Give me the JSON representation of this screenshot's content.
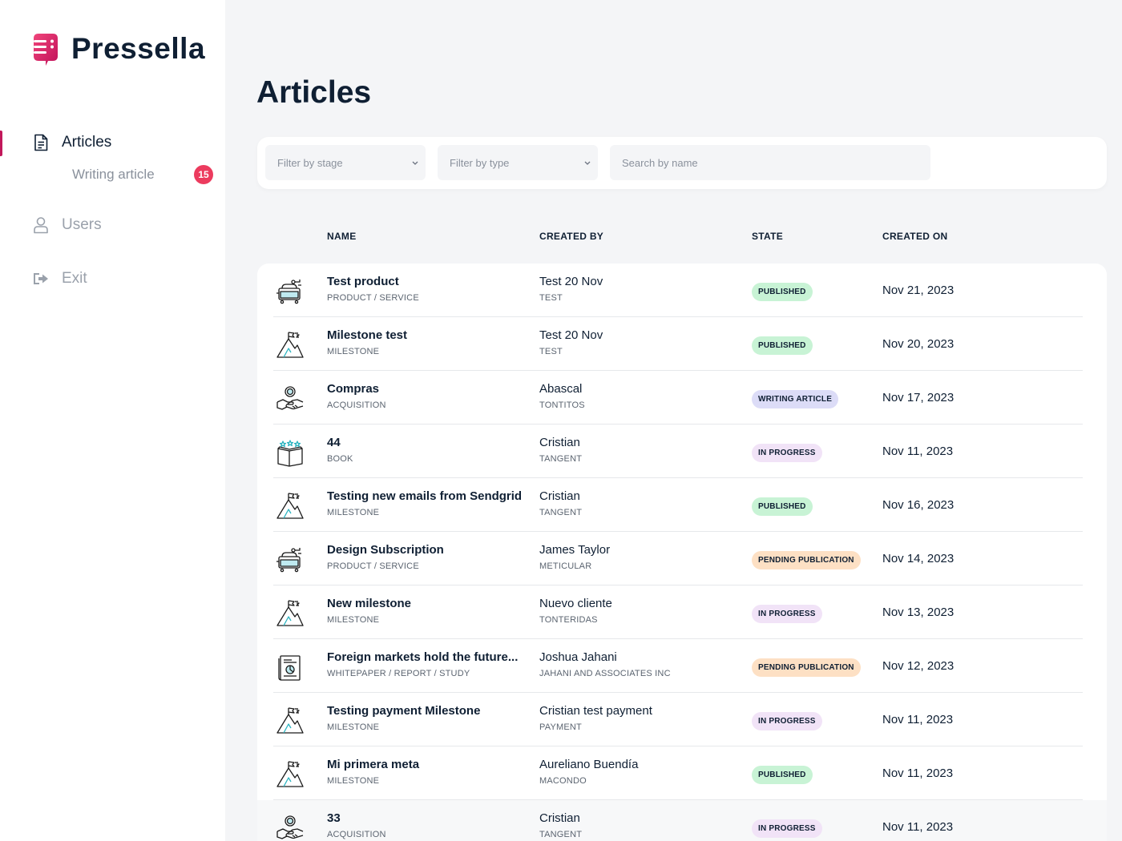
{
  "app": {
    "name": "Pressella"
  },
  "sidebar": {
    "items": [
      {
        "label": "Articles",
        "icon": "document-icon"
      },
      {
        "label": "Users",
        "icon": "user-icon"
      },
      {
        "label": "Exit",
        "icon": "exit-icon"
      }
    ],
    "sub_item": {
      "label": "Writing article",
      "badge": "15"
    }
  },
  "main": {
    "title": "Articles",
    "filters": {
      "stage_placeholder": "Filter by stage",
      "type_placeholder": "Filter by type",
      "search_placeholder": "Search by name"
    },
    "columns": [
      "NAME",
      "CREATED BY",
      "STATE",
      "CREATED ON"
    ],
    "state_colors": {
      "PUBLISHED": "#c8f3d5",
      "WRITING ARTICLE": "#dcdcf7",
      "IN PROGRESS": "#f1e3f7",
      "PENDING PUBLICATION": "#fde0c4"
    },
    "rows": [
      {
        "name": "Test product",
        "type": "PRODUCT / SERVICE",
        "icon": "product-service-icon",
        "created_by": "Test 20 Nov",
        "company": "TEST",
        "state": "PUBLISHED",
        "date": "Nov 21, 2023"
      },
      {
        "name": "Milestone test",
        "type": "MILESTONE",
        "icon": "milestone-icon",
        "created_by": "Test 20 Nov",
        "company": "TEST",
        "state": "PUBLISHED",
        "date": "Nov 20, 2023"
      },
      {
        "name": "Compras",
        "type": "ACQUISITION",
        "icon": "acquisition-icon",
        "created_by": "Abascal",
        "company": "TONTITOS",
        "state": "WRITING ARTICLE",
        "date": "Nov 17, 2023"
      },
      {
        "name": "44",
        "type": "BOOK",
        "icon": "book-icon",
        "created_by": "Cristian",
        "company": "TANGENT",
        "state": "IN PROGRESS",
        "date": "Nov 11, 2023"
      },
      {
        "name": "Testing new emails from Sendgrid",
        "type": "MILESTONE",
        "icon": "milestone-icon",
        "created_by": "Cristian",
        "company": "TANGENT",
        "state": "PUBLISHED",
        "date": "Nov 16, 2023"
      },
      {
        "name": "Design Subscription",
        "type": "PRODUCT / SERVICE",
        "icon": "product-service-icon",
        "created_by": "James Taylor",
        "company": "METICULAR",
        "state": "PENDING PUBLICATION",
        "date": "Nov 14, 2023"
      },
      {
        "name": "New milestone",
        "type": "MILESTONE",
        "icon": "milestone-icon",
        "created_by": "Nuevo cliente",
        "company": "TONTERIDAS",
        "state": "IN PROGRESS",
        "date": "Nov 13, 2023"
      },
      {
        "name": " Foreign markets hold the future...",
        "type": "WHITEPAPER / REPORT / STUDY",
        "icon": "whitepaper-icon",
        "created_by": "Joshua Jahani",
        "company": "JAHANI AND ASSOCIATES INC",
        "state": "PENDING PUBLICATION",
        "date": "Nov 12, 2023"
      },
      {
        "name": "Testing payment Milestone",
        "type": "MILESTONE",
        "icon": "milestone-icon",
        "created_by": "Cristian test payment",
        "company": "PAYMENT",
        "state": "IN PROGRESS",
        "date": "Nov 11, 2023"
      },
      {
        "name": "Mi primera meta",
        "type": "MILESTONE",
        "icon": "milestone-icon",
        "created_by": "Aureliano Buendía",
        "company": "MACONDO",
        "state": "PUBLISHED",
        "date": "Nov 11, 2023"
      },
      {
        "name": "33",
        "type": "ACQUISITION",
        "icon": "acquisition-icon",
        "created_by": "Cristian",
        "company": "TANGENT",
        "state": "IN PROGRESS",
        "date": "Nov 11, 2023"
      }
    ]
  }
}
